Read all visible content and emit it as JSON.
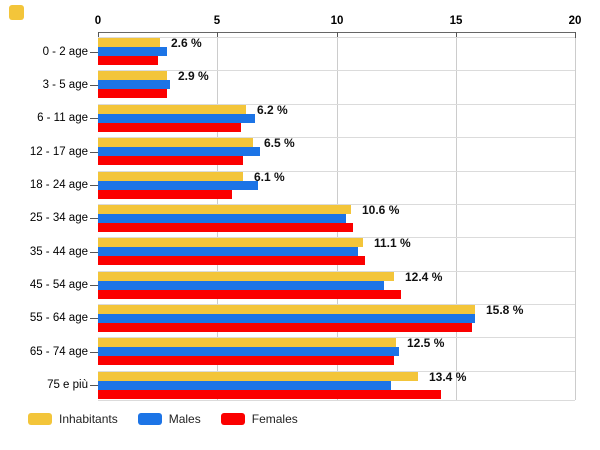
{
  "page": {
    "background": "#ffffff",
    "corner_marker_color": "#F3C53A"
  },
  "chart_data": {
    "type": "bar",
    "orientation": "horizontal",
    "title": "",
    "categories": [
      "0 - 2 age",
      "3 - 5 age",
      "6 - 11 age",
      "12 - 17 age",
      "18 - 24 age",
      "25 - 34 age",
      "35 - 44 age",
      "45 - 54 age",
      "55 - 64 age",
      "65 - 74 age",
      "75 e più"
    ],
    "series": [
      {
        "name": "Inhabitants",
        "color": "#F3C53A",
        "values": [
          2.6,
          2.9,
          6.2,
          6.5,
          6.1,
          10.6,
          11.1,
          12.4,
          15.8,
          12.5,
          13.4
        ]
      },
      {
        "name": "Males",
        "color": "#1C74E6",
        "values": [
          2.9,
          3.0,
          6.6,
          6.8,
          6.7,
          10.4,
          10.9,
          12.0,
          15.8,
          12.6,
          12.3
        ]
      },
      {
        "name": "Females",
        "color": "#FB0000",
        "values": [
          2.5,
          2.9,
          6.0,
          6.1,
          5.6,
          10.7,
          11.2,
          12.7,
          15.7,
          12.4,
          14.4
        ]
      }
    ],
    "bar_labels": [
      "2.6 %",
      "2.9 %",
      "6.2 %",
      "6.5 %",
      "6.1 %",
      "10.6 %",
      "11.1 %",
      "12.4 %",
      "15.8 %",
      "12.5 %",
      "13.4 %"
    ],
    "bar_labels_series": "Inhabitants",
    "x_axis": {
      "position": "top",
      "ticks": [
        0,
        5,
        10,
        15,
        20
      ],
      "range": [
        0,
        20
      ]
    },
    "legend": {
      "position": "bottom",
      "entries": [
        "Inhabitants",
        "Males",
        "Females"
      ]
    },
    "grid": true,
    "colors": {
      "vertical_gridline": "#CCCCCC",
      "horizontal_gridline": "#DBDBDB",
      "axis_line": "#666666",
      "tick_mark": "#555555",
      "tick_text": "#000000",
      "category_text": "#000000",
      "category_dash": "#555555",
      "bar_label_text": "#111111",
      "legend_text": "#222222"
    }
  }
}
